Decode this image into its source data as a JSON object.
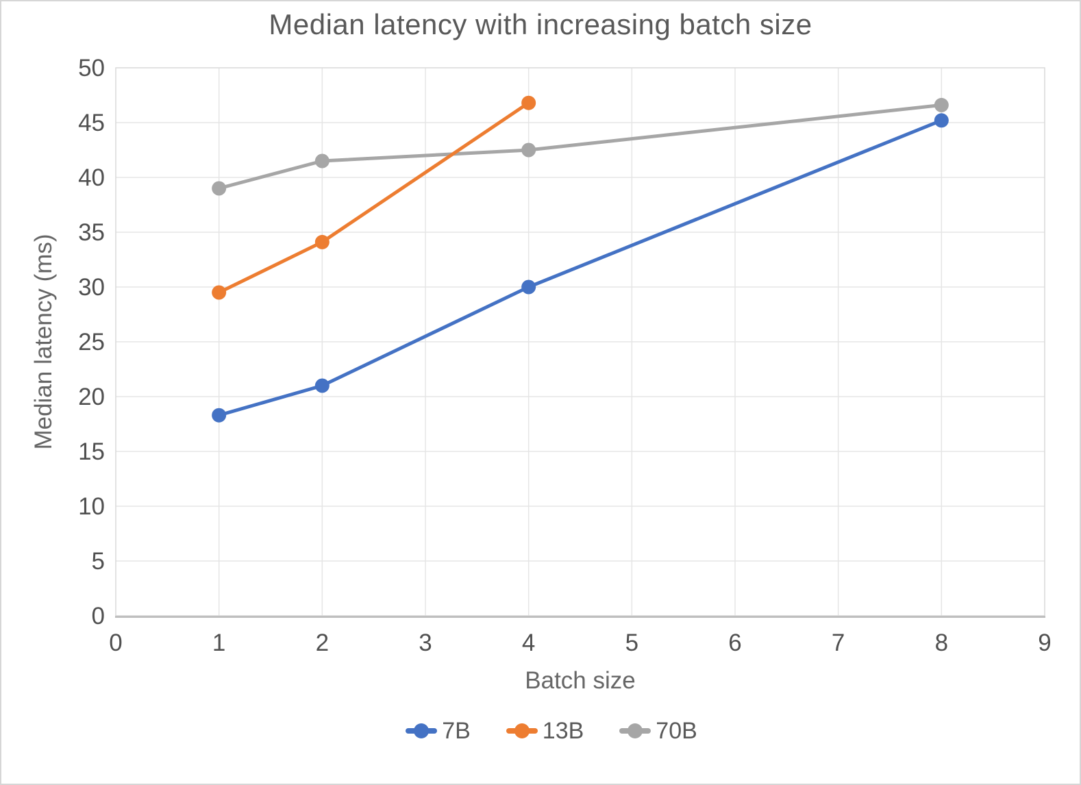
{
  "chart_data": {
    "type": "line",
    "title": "Median latency with increasing batch size",
    "xlabel": "Batch size",
    "ylabel": "Median latency (ms)",
    "xlim": [
      0,
      9
    ],
    "ylim": [
      0,
      50
    ],
    "x_ticks": [
      0,
      1,
      2,
      3,
      4,
      5,
      6,
      7,
      8,
      9
    ],
    "y_ticks": [
      0,
      5,
      10,
      15,
      20,
      25,
      30,
      35,
      40,
      45,
      50
    ],
    "grid": true,
    "legend_position": "bottom",
    "series": [
      {
        "name": "7B",
        "color": "#4472C4",
        "points": [
          {
            "x": 1,
            "y": 18.3
          },
          {
            "x": 2,
            "y": 21.0
          },
          {
            "x": 4,
            "y": 30.0
          },
          {
            "x": 8,
            "y": 45.2
          }
        ]
      },
      {
        "name": "13B",
        "color": "#ED7D31",
        "points": [
          {
            "x": 1,
            "y": 29.5
          },
          {
            "x": 2,
            "y": 34.1
          },
          {
            "x": 4,
            "y": 46.8
          }
        ]
      },
      {
        "name": "70B",
        "color": "#A6A6A6",
        "points": [
          {
            "x": 1,
            "y": 39.0
          },
          {
            "x": 2,
            "y": 41.5
          },
          {
            "x": 4,
            "y": 42.5
          },
          {
            "x": 8,
            "y": 46.6
          }
        ]
      }
    ]
  },
  "colors": {
    "background": "#ffffff",
    "frame_border": "#d6d6d6",
    "grid": "#e5e5e5",
    "plot_border": "#d9d9d9",
    "axis_line": "#bfbfbf",
    "tick_label": "#505050",
    "title": "#595959",
    "axis_title": "#666666",
    "legend_text": "#595959"
  }
}
